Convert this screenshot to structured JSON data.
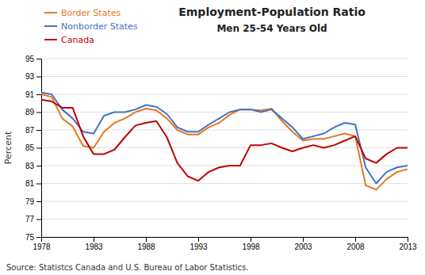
{
  "chart_data": {
    "type": "line",
    "title": "Employment-Population Ratio",
    "subtitle": "Men 25-54 Years Old",
    "y_label": "Percent",
    "source": "Source: Statistcs Canada and U.S. Bureau of Labor Statistics.",
    "x": [
      1978,
      1979,
      1980,
      1981,
      1982,
      1983,
      1984,
      1985,
      1986,
      1987,
      1988,
      1989,
      1990,
      1991,
      1992,
      1993,
      1994,
      1995,
      1996,
      1997,
      1998,
      1999,
      2000,
      2001,
      2002,
      2003,
      2004,
      2005,
      2006,
      2007,
      2008,
      2009,
      2010,
      2011,
      2012,
      2013
    ],
    "series": [
      {
        "name": "Border States",
        "color": "#E87722",
        "values": [
          91.0,
          90.7,
          88.3,
          87.4,
          85.2,
          85.0,
          86.8,
          87.8,
          88.3,
          89.0,
          89.4,
          89.2,
          88.3,
          87.0,
          86.5,
          86.5,
          87.3,
          87.8,
          88.7,
          89.3,
          89.3,
          89.2,
          89.4,
          88.0,
          86.8,
          85.8,
          86.0,
          86.0,
          86.3,
          86.6,
          86.3,
          80.8,
          80.3,
          81.5,
          82.3,
          82.6
        ]
      },
      {
        "name": "Nonborder States",
        "color": "#4472C4",
        "values": [
          91.2,
          91.0,
          89.3,
          88.3,
          86.8,
          86.6,
          88.6,
          89.0,
          89.0,
          89.3,
          89.8,
          89.6,
          88.8,
          87.3,
          86.8,
          86.8,
          87.6,
          88.3,
          89.0,
          89.3,
          89.3,
          89.0,
          89.3,
          88.3,
          87.3,
          86.0,
          86.3,
          86.6,
          87.3,
          87.8,
          87.6,
          82.8,
          81.0,
          82.3,
          82.8,
          83.0
        ]
      },
      {
        "name": "Canada",
        "color": "#C00000",
        "values": [
          90.4,
          90.2,
          89.5,
          89.5,
          86.3,
          84.3,
          84.3,
          84.8,
          86.2,
          87.5,
          87.8,
          88.0,
          86.2,
          83.3,
          81.8,
          81.3,
          82.3,
          82.8,
          83.0,
          83.0,
          85.3,
          85.3,
          85.5,
          85.0,
          84.6,
          85.0,
          85.3,
          85.0,
          85.3,
          85.8,
          86.3,
          83.8,
          83.3,
          84.3,
          85.0,
          85.0
        ]
      }
    ],
    "xlim": [
      1978,
      2013
    ],
    "xticks": [
      1978,
      1983,
      1988,
      1993,
      1998,
      2003,
      2008,
      2013
    ],
    "ylim": [
      75,
      95
    ],
    "yticks": [
      75,
      77,
      79,
      81,
      83,
      85,
      87,
      89,
      91,
      93,
      95
    ],
    "grid": true,
    "legend": "top-left"
  }
}
